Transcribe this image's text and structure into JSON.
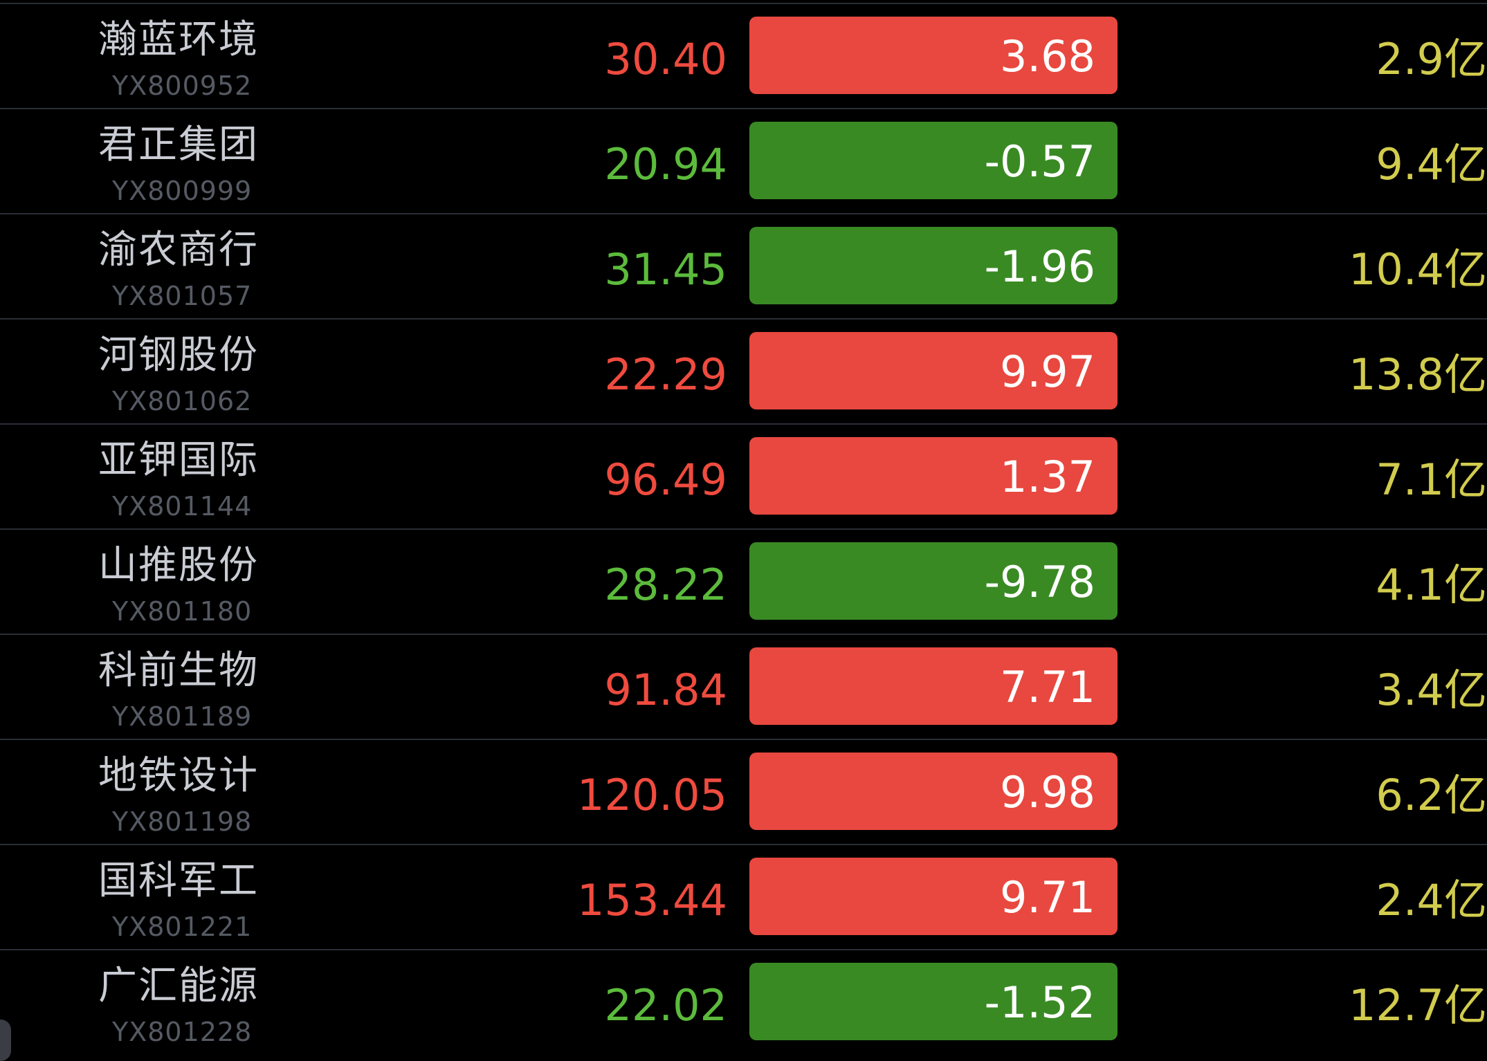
{
  "colors": {
    "up": "#e8483f",
    "down": "#3a8a24",
    "price_up": "#ef4b3f",
    "price_down": "#5cbb3c",
    "market_cap": "#d2cc4e"
  },
  "stocks": [
    {
      "name": "瀚蓝环境",
      "code": "YX800952",
      "price": "30.40",
      "change": "3.68",
      "direction": "up",
      "market_cap": "2.9亿"
    },
    {
      "name": "君正集团",
      "code": "YX800999",
      "price": "20.94",
      "change": "-0.57",
      "direction": "down",
      "market_cap": "9.4亿"
    },
    {
      "name": "渝农商行",
      "code": "YX801057",
      "price": "31.45",
      "change": "-1.96",
      "direction": "down",
      "market_cap": "10.4亿"
    },
    {
      "name": "河钢股份",
      "code": "YX801062",
      "price": "22.29",
      "change": "9.97",
      "direction": "up",
      "market_cap": "13.8亿"
    },
    {
      "name": "亚钾国际",
      "code": "YX801144",
      "price": "96.49",
      "change": "1.37",
      "direction": "up",
      "market_cap": "7.1亿"
    },
    {
      "name": "山推股份",
      "code": "YX801180",
      "price": "28.22",
      "change": "-9.78",
      "direction": "down",
      "market_cap": "4.1亿"
    },
    {
      "name": "科前生物",
      "code": "YX801189",
      "price": "91.84",
      "change": "7.71",
      "direction": "up",
      "market_cap": "3.4亿"
    },
    {
      "name": "地铁设计",
      "code": "YX801198",
      "price": "120.05",
      "change": "9.98",
      "direction": "up",
      "market_cap": "6.2亿"
    },
    {
      "name": "国科军工",
      "code": "YX801221",
      "price": "153.44",
      "change": "9.71",
      "direction": "up",
      "market_cap": "2.4亿"
    },
    {
      "name": "广汇能源",
      "code": "YX801228",
      "price": "22.02",
      "change": "-1.52",
      "direction": "down",
      "market_cap": "12.7亿"
    }
  ]
}
